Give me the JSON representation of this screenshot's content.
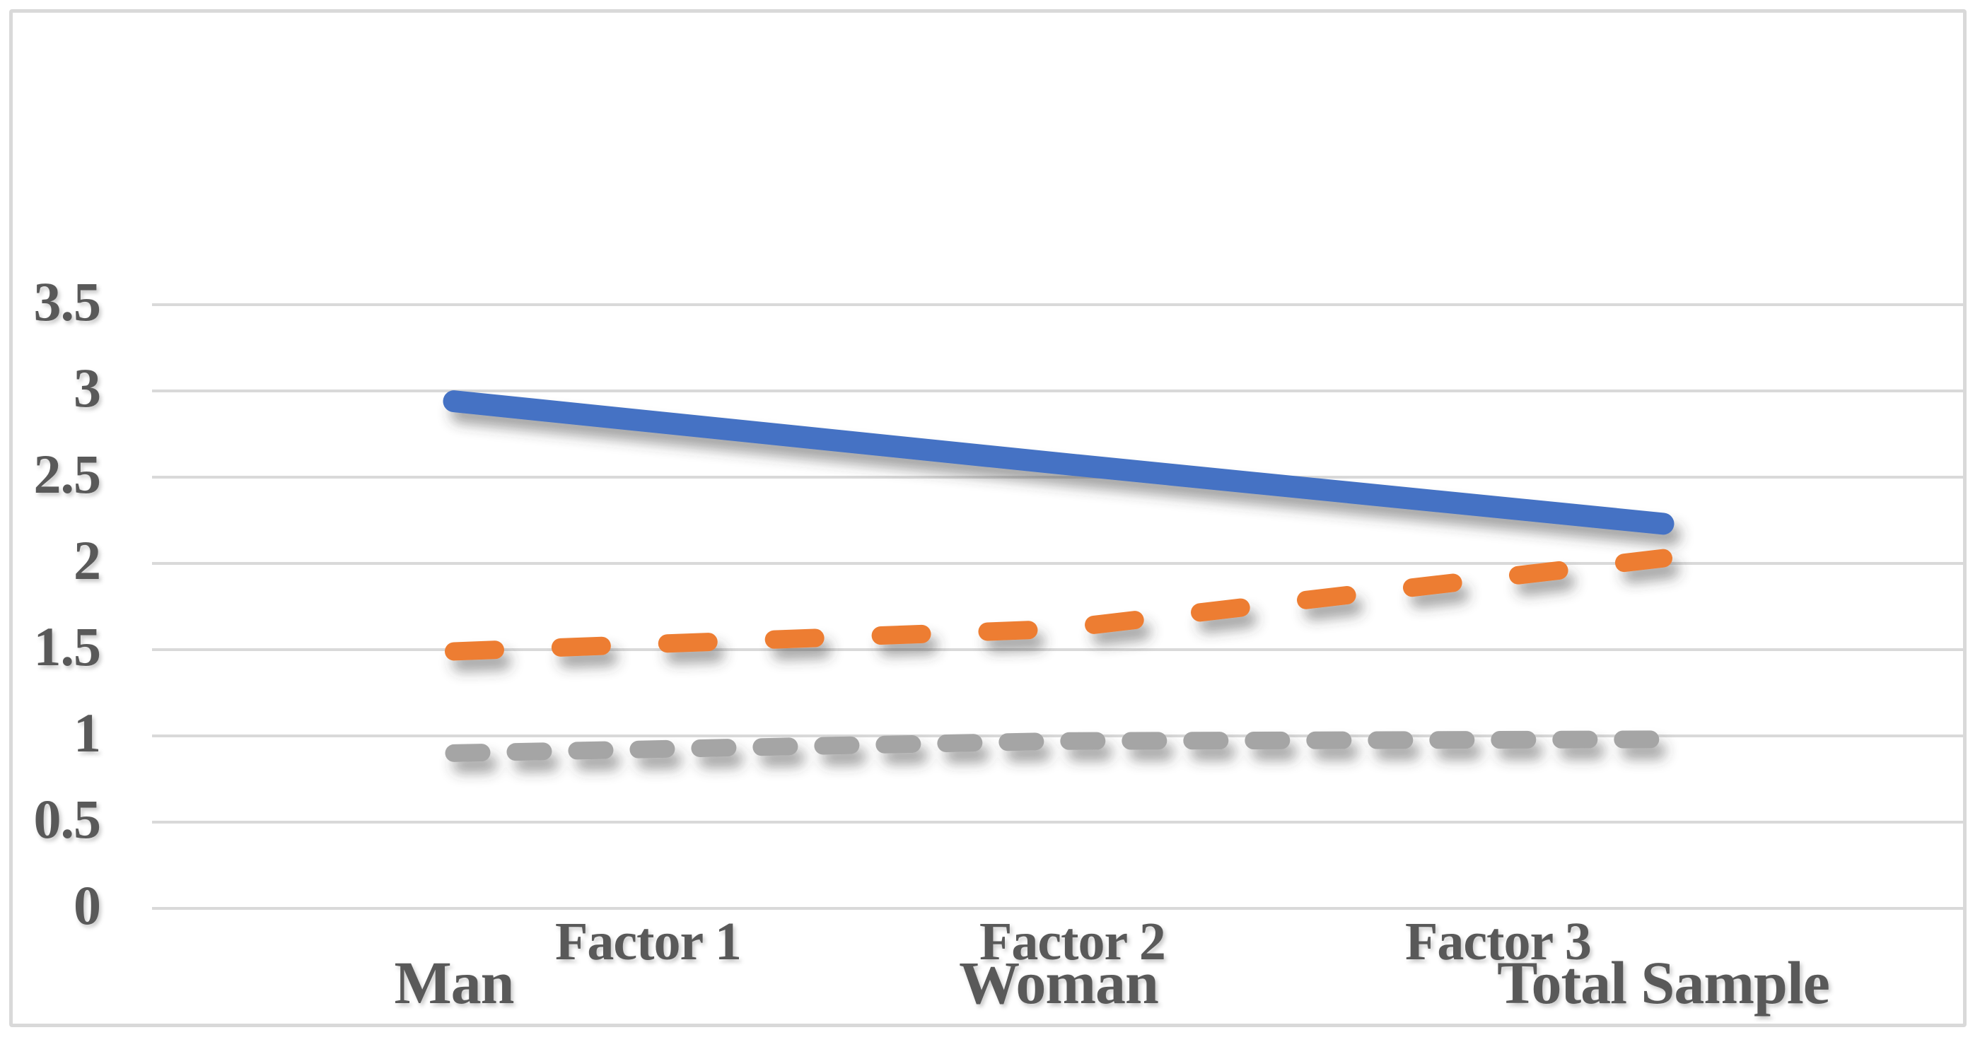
{
  "chart_data": {
    "type": "line",
    "title": "",
    "xlabel": "",
    "ylabel": "",
    "categories": [
      "Man",
      "Woman",
      "Total Sample"
    ],
    "series": [
      {
        "name": "Factor 1",
        "values": [
          2.94,
          2.58,
          2.23
        ],
        "color": "#4472C4",
        "dash": "solid"
      },
      {
        "name": "Factor 2",
        "values": [
          1.49,
          1.62,
          2.03
        ],
        "color": "#ED7D31",
        "dash": "long-dash"
      },
      {
        "name": "Factor 3",
        "values": [
          0.9,
          0.97,
          0.98
        ],
        "color": "#A5A5A5",
        "dash": "dash"
      }
    ],
    "y_axis": {
      "ticks": [
        "3.5",
        "3",
        "2.5",
        "2",
        "1.5",
        "1",
        "0.5",
        "0"
      ],
      "min": 0,
      "max": 3.5,
      "step": 0.5
    },
    "grid": true,
    "legend_position": "bottom",
    "styles": {
      "grid_color": "#D9D9D9",
      "frame_color": "#D9D9D9",
      "text_color": "#595959",
      "background": "#FFFFFF"
    }
  }
}
